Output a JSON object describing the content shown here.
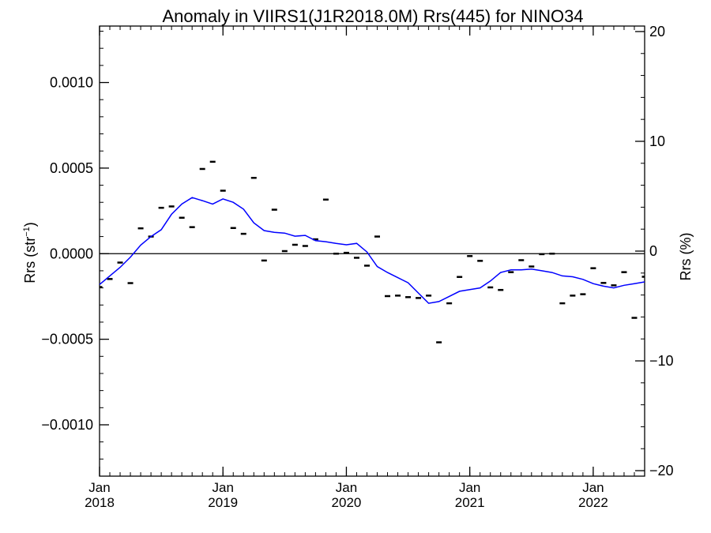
{
  "chart_data": {
    "type": "line",
    "title": "Anomaly in VIIRS1(J1R2018.0M) Rrs(445) for NINO34",
    "ylabel_left": "Rrs (str",
    "ylabel_left_sup": "−1",
    "ylabel_left_close": ")",
    "ylabel_right": "Rrs (%)",
    "xlim": [
      "2018-01",
      "2022-06"
    ],
    "ylim_left": [
      -0.0013,
      0.00133
    ],
    "ylim_right": [
      -20.5,
      20.5
    ],
    "x_ticks": [
      {
        "month": "2018-01",
        "top": "Jan",
        "bottom": "2018"
      },
      {
        "month": "2019-01",
        "top": "Jan",
        "bottom": "2019"
      },
      {
        "month": "2020-01",
        "top": "Jan",
        "bottom": "2020"
      },
      {
        "month": "2021-01",
        "top": "Jan",
        "bottom": "2021"
      },
      {
        "month": "2022-01",
        "top": "Jan",
        "bottom": "2022"
      }
    ],
    "y_ticks_left": [
      {
        "value": 0.001,
        "label": "0.0010"
      },
      {
        "value": 0.0005,
        "label": "0.0005"
      },
      {
        "value": 0.0,
        "label": "0.0000"
      },
      {
        "value": -0.0005,
        "label": "−0.0005"
      },
      {
        "value": -0.001,
        "label": "−0.0010"
      }
    ],
    "y_ticks_right": [
      {
        "value": 20,
        "label": "20"
      },
      {
        "value": 10,
        "label": "10"
      },
      {
        "value": 0,
        "label": "0"
      },
      {
        "value": -10,
        "label": "−10"
      },
      {
        "value": -20,
        "label": "−20"
      }
    ],
    "zero_line": true,
    "series": [
      {
        "style": "dashes",
        "color": "#000000",
        "points": [
          [
            "2018-01",
            -0.000195
          ],
          [
            "2018-02",
            -0.000148
          ],
          [
            "2018-03",
            -5.2e-05
          ],
          [
            "2018-04",
            -0.000172
          ],
          [
            "2018-05",
            0.000148
          ],
          [
            "2018-06",
            0.0001
          ],
          [
            "2018-07",
            0.000268
          ],
          [
            "2018-08",
            0.000276
          ],
          [
            "2018-09",
            0.00021
          ],
          [
            "2018-10",
            0.000155
          ],
          [
            "2018-11",
            0.000495
          ],
          [
            "2018-12",
            0.000537
          ],
          [
            "2019-01",
            0.000368
          ],
          [
            "2019-02",
            0.00015
          ],
          [
            "2019-03",
            0.000116
          ],
          [
            "2019-04",
            0.000443
          ],
          [
            "2019-05",
            -4e-05
          ],
          [
            "2019-06",
            0.000257
          ],
          [
            "2019-07",
            1.5e-05
          ],
          [
            "2019-08",
            5.2e-05
          ],
          [
            "2019-09",
            4.5e-05
          ],
          [
            "2019-10",
            8.4e-05
          ],
          [
            "2019-11",
            0.000316
          ],
          [
            "2019-12",
            0.0
          ],
          [
            "2020-01",
            5e-06
          ],
          [
            "2020-02",
            -2.4e-05
          ],
          [
            "2020-03",
            -7e-05
          ],
          [
            "2020-04",
            0.0001
          ],
          [
            "2020-05",
            -0.000248
          ],
          [
            "2020-06",
            -0.000245
          ],
          [
            "2020-07",
            -0.000254
          ],
          [
            "2020-08",
            -0.000259
          ],
          [
            "2020-09",
            -0.000245
          ],
          [
            "2020-10",
            -0.000518
          ],
          [
            "2020-11",
            -0.00029
          ],
          [
            "2020-12",
            -0.000136
          ],
          [
            "2021-01",
            -1.4e-05
          ],
          [
            "2021-02",
            -4.2e-05
          ],
          [
            "2021-03",
            -0.000197
          ],
          [
            "2021-04",
            -0.000212
          ],
          [
            "2021-05",
            -0.000108
          ],
          [
            "2021-06",
            -3.8e-05
          ],
          [
            "2021-07",
            -7.5e-05
          ],
          [
            "2021-08",
            -3e-06
          ],
          [
            "2021-09",
            0.0
          ],
          [
            "2021-10",
            -0.00029
          ],
          [
            "2021-11",
            -0.000245
          ],
          [
            "2021-12",
            -0.000237
          ],
          [
            "2022-01",
            -8.5e-05
          ],
          [
            "2022-02",
            -0.000171
          ],
          [
            "2022-03",
            -0.000185
          ],
          [
            "2022-04",
            -0.000108
          ],
          [
            "2022-05",
            -0.000375
          ],
          [
            "2022-06",
            -0.000135
          ]
        ]
      },
      {
        "style": "line",
        "color": "#0000ff",
        "points": [
          [
            "2018-01",
            -0.00018
          ],
          [
            "2018-02",
            -0.00013
          ],
          [
            "2018-03",
            -8e-05
          ],
          [
            "2018-04",
            -2e-05
          ],
          [
            "2018-05",
            5e-05
          ],
          [
            "2018-06",
            0.0001
          ],
          [
            "2018-07",
            0.00014
          ],
          [
            "2018-08",
            0.00023
          ],
          [
            "2018-09",
            0.00029
          ],
          [
            "2018-10",
            0.000328
          ],
          [
            "2018-11",
            0.00031
          ],
          [
            "2018-12",
            0.00029
          ],
          [
            "2019-01",
            0.00032
          ],
          [
            "2019-02",
            0.0003
          ],
          [
            "2019-03",
            0.00026
          ],
          [
            "2019-04",
            0.00018
          ],
          [
            "2019-05",
            0.000135
          ],
          [
            "2019-06",
            0.000125
          ],
          [
            "2019-07",
            0.00012
          ],
          [
            "2019-08",
            0.000102
          ],
          [
            "2019-09",
            0.000107
          ],
          [
            "2019-10",
            7.6e-05
          ],
          [
            "2019-11",
            7e-05
          ],
          [
            "2019-12",
            6e-05
          ],
          [
            "2020-01",
            5.2e-05
          ],
          [
            "2020-02",
            6e-05
          ],
          [
            "2020-03",
            1e-05
          ],
          [
            "2020-04",
            -7.5e-05
          ],
          [
            "2020-05",
            -0.00011
          ],
          [
            "2020-06",
            -0.00014
          ],
          [
            "2020-07",
            -0.00017
          ],
          [
            "2020-08",
            -0.00023
          ],
          [
            "2020-09",
            -0.00029
          ],
          [
            "2020-10",
            -0.00028
          ],
          [
            "2020-11",
            -0.00025
          ],
          [
            "2020-12",
            -0.00022
          ],
          [
            "2021-01",
            -0.00021
          ],
          [
            "2021-02",
            -0.0002
          ],
          [
            "2021-03",
            -0.00016
          ],
          [
            "2021-04",
            -0.00011
          ],
          [
            "2021-05",
            -9.5e-05
          ],
          [
            "2021-06",
            -9.5e-05
          ],
          [
            "2021-07",
            -9e-05
          ],
          [
            "2021-08",
            -0.0001
          ],
          [
            "2021-09",
            -0.00011
          ],
          [
            "2021-10",
            -0.00013
          ],
          [
            "2021-11",
            -0.000135
          ],
          [
            "2021-12",
            -0.00015
          ],
          [
            "2022-01",
            -0.000175
          ],
          [
            "2022-02",
            -0.00019
          ],
          [
            "2022-03",
            -0.0002
          ],
          [
            "2022-04",
            -0.000185
          ],
          [
            "2022-05",
            -0.000175
          ],
          [
            "2022-06",
            -0.000165
          ]
        ]
      }
    ]
  }
}
